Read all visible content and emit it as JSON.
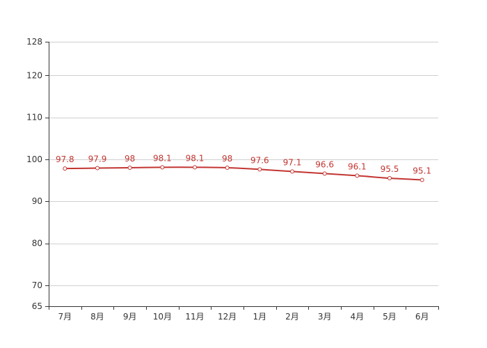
{
  "chart_data": {
    "type": "line",
    "title": "",
    "xlabel": "",
    "ylabel": "",
    "categories": [
      "7月",
      "8月",
      "9月",
      "10月",
      "11月",
      "12月",
      "1月",
      "2月",
      "3月",
      "4月",
      "5月",
      "6月"
    ],
    "series": [
      {
        "values": [
          97.8,
          97.9,
          98,
          98.1,
          98.1,
          98,
          97.6,
          97.1,
          96.6,
          96.1,
          95.5,
          95.1
        ],
        "labels": [
          "97.8",
          "97.9",
          "98",
          "98.1",
          "98.1",
          "98",
          "97.6",
          "97.1",
          "96.6",
          "96.1",
          "95.5",
          "95.1"
        ],
        "color": "#c23531"
      }
    ],
    "y_ticks": [
      65,
      70,
      80,
      90,
      100,
      110,
      120,
      128
    ],
    "y_tick_labels": [
      "65",
      "70",
      "80",
      "90",
      "100",
      "110",
      "120",
      "128"
    ],
    "ylim": [
      65,
      128
    ],
    "grid": true,
    "smooth": true
  }
}
